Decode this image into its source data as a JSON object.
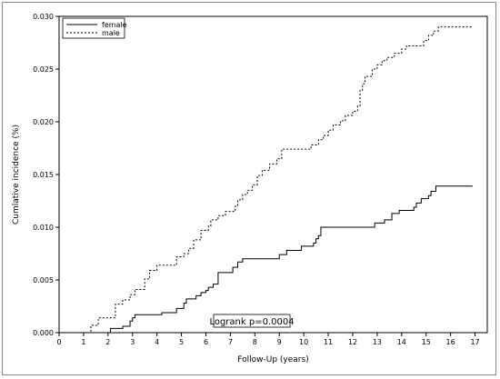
{
  "chart_data": {
    "type": "line",
    "subtype": "step",
    "title": "",
    "xlabel": "Follow-Up (years)",
    "ylabel": "Cumlative incidence (%)",
    "xlim": [
      0,
      17.5
    ],
    "ylim": [
      0,
      0.03
    ],
    "xticks": [
      "0",
      "1",
      "2",
      "3",
      "4",
      "5",
      "6",
      "7",
      "8",
      "9",
      "10",
      "11",
      "12",
      "13",
      "14",
      "15",
      "16",
      "17"
    ],
    "yticks": [
      "0.000",
      "0.005",
      "0.010",
      "0.015",
      "0.020",
      "0.025",
      "0.030"
    ],
    "grid": false,
    "legend": {
      "position": "top-left",
      "entries": [
        "female",
        "male"
      ]
    },
    "annotation": "Logrank p=0.0004",
    "series": [
      {
        "name": "female",
        "line_style": "solid",
        "x": [
          0,
          2.1,
          2.6,
          2.9,
          3.0,
          3.1,
          4.2,
          4.8,
          5.1,
          5.2,
          5.6,
          5.8,
          6.0,
          6.1,
          6.3,
          6.5,
          7.1,
          7.3,
          7.5,
          9.0,
          9.3,
          9.9,
          10.4,
          10.5,
          10.6,
          10.7,
          12.9,
          13.3,
          13.6,
          13.9,
          14.5,
          14.6,
          14.8,
          15.1,
          15.2,
          15.4,
          16.9
        ],
        "y": [
          0,
          0.0004,
          0.0006,
          0.0011,
          0.0014,
          0.0017,
          0.0019,
          0.0023,
          0.0028,
          0.0032,
          0.0035,
          0.0038,
          0.004,
          0.0043,
          0.0046,
          0.0057,
          0.0062,
          0.0067,
          0.007,
          0.0074,
          0.0078,
          0.0082,
          0.0085,
          0.0089,
          0.0092,
          0.01,
          0.0104,
          0.0107,
          0.0113,
          0.0116,
          0.0119,
          0.0123,
          0.0127,
          0.013,
          0.0134,
          0.0139,
          0.0139
        ]
      },
      {
        "name": "male",
        "line_style": "dashed",
        "x": [
          0,
          1.3,
          1.6,
          2.3,
          2.6,
          2.9,
          3.1,
          3.5,
          3.7,
          4.0,
          4.8,
          5.1,
          5.3,
          5.5,
          5.8,
          6.1,
          6.2,
          6.5,
          6.8,
          7.2,
          7.3,
          7.5,
          7.7,
          7.9,
          8.1,
          8.3,
          8.6,
          8.9,
          9.1,
          10.3,
          10.6,
          10.8,
          11.0,
          11.2,
          11.5,
          11.7,
          12.0,
          12.2,
          12.3,
          12.4,
          12.5,
          12.8,
          13.0,
          13.2,
          13.4,
          13.7,
          14.0,
          14.2,
          14.9,
          15.1,
          15.3,
          15.5,
          16.9
        ],
        "y": [
          0,
          0.0007,
          0.0014,
          0.0027,
          0.0031,
          0.0036,
          0.0041,
          0.0051,
          0.0059,
          0.0064,
          0.0072,
          0.0075,
          0.008,
          0.0088,
          0.0097,
          0.0101,
          0.0107,
          0.0111,
          0.0115,
          0.012,
          0.0126,
          0.0131,
          0.0135,
          0.014,
          0.0149,
          0.0154,
          0.016,
          0.0165,
          0.0174,
          0.0178,
          0.0183,
          0.0187,
          0.0192,
          0.0197,
          0.0201,
          0.0206,
          0.021,
          0.0215,
          0.023,
          0.0236,
          0.0243,
          0.025,
          0.0254,
          0.0258,
          0.0261,
          0.0265,
          0.0269,
          0.0272,
          0.0277,
          0.0282,
          0.0286,
          0.029,
          0.029
        ]
      }
    ]
  }
}
